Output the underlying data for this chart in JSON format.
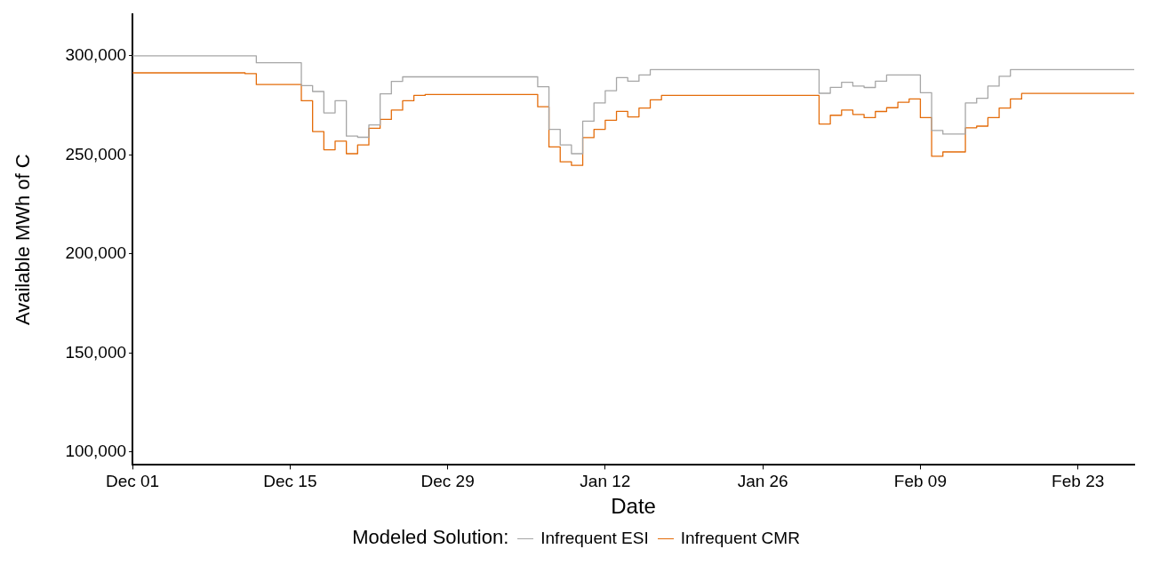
{
  "chart_data": {
    "type": "step",
    "xlabel": "Date",
    "ylabel": "Available MWh of C",
    "legend_title": "Modeled Solution:",
    "legend": "bottom",
    "marker": "none",
    "line_style": "solid",
    "grid": false,
    "categories": [
      "Dec 01",
      null,
      null,
      null,
      null,
      null,
      null,
      null,
      null,
      null,
      null,
      null,
      null,
      null,
      "Dec 15",
      null,
      null,
      null,
      null,
      null,
      null,
      null,
      null,
      null,
      null,
      null,
      null,
      null,
      "Dec 29",
      null,
      null,
      null,
      null,
      null,
      null,
      null,
      null,
      null,
      null,
      null,
      null,
      null,
      "Jan 12",
      null,
      null,
      null,
      null,
      null,
      null,
      null,
      null,
      null,
      null,
      null,
      null,
      null,
      "Jan 26",
      null,
      null,
      null,
      null,
      null,
      null,
      null,
      null,
      null,
      null,
      null,
      null,
      null,
      "Feb 09",
      null,
      null,
      null,
      null,
      null,
      null,
      null,
      null,
      null,
      null,
      null,
      null,
      null,
      "Feb 23",
      null,
      null,
      null,
      null,
      null
    ],
    "ylim": [
      93500,
      321000
    ],
    "yticks": [
      {
        "value": 100000,
        "label": "100,000"
      },
      {
        "value": 150000,
        "label": "150,000"
      },
      {
        "value": 200000,
        "label": "200,000"
      },
      {
        "value": 250000,
        "label": "250,000"
      },
      {
        "value": 300000,
        "label": "300,000"
      }
    ],
    "series": [
      {
        "name": "Infrequent ESI",
        "color": "#a6a6a6",
        "values": [
          300000,
          300000,
          300000,
          300000,
          300000,
          300000,
          300000,
          300000,
          300000,
          300000,
          300000,
          296500,
          296500,
          296500,
          296500,
          285000,
          282000,
          271200,
          277300,
          259500,
          258900,
          265100,
          280800,
          287100,
          289400,
          289400,
          289400,
          289400,
          289400,
          289400,
          289400,
          289400,
          289400,
          289400,
          289400,
          289400,
          284400,
          262900,
          255000,
          250600,
          267000,
          276200,
          282400,
          289000,
          287200,
          290300,
          293000,
          293000,
          293000,
          293000,
          293000,
          293000,
          293000,
          293000,
          293000,
          293000,
          293000,
          293000,
          293000,
          293000,
          293000,
          281100,
          284100,
          286600,
          284700,
          284000,
          287200,
          290300,
          290300,
          290300,
          281400,
          262300,
          260500,
          260500,
          276200,
          278600,
          284700,
          289700,
          293000,
          293000,
          293000,
          293000,
          293000,
          293000,
          293000,
          293000,
          293000,
          293000,
          293000,
          293000
        ]
      },
      {
        "name": "Infrequent CMR",
        "color": "#e46c0a",
        "values": [
          291400,
          291400,
          291400,
          291400,
          291400,
          291400,
          291400,
          291400,
          291400,
          291400,
          291000,
          285500,
          285500,
          285500,
          285500,
          277300,
          261800,
          252600,
          256900,
          250600,
          255000,
          263400,
          267900,
          272600,
          277300,
          280000,
          280500,
          280500,
          280500,
          280500,
          280500,
          280500,
          280500,
          280500,
          280500,
          280500,
          274300,
          254000,
          246500,
          244700,
          258700,
          262900,
          267500,
          272000,
          269200,
          273600,
          277800,
          280000,
          280000,
          280000,
          280000,
          280000,
          280000,
          280000,
          280000,
          280000,
          280000,
          280000,
          280000,
          280000,
          280000,
          265600,
          270000,
          272600,
          270400,
          268800,
          271900,
          273800,
          276600,
          278200,
          268800,
          249300,
          251500,
          251500,
          263700,
          264500,
          268800,
          273600,
          278200,
          281000,
          281000,
          281000,
          281000,
          281000,
          281000,
          281000,
          281000,
          281000,
          281000,
          281000
        ]
      }
    ]
  }
}
